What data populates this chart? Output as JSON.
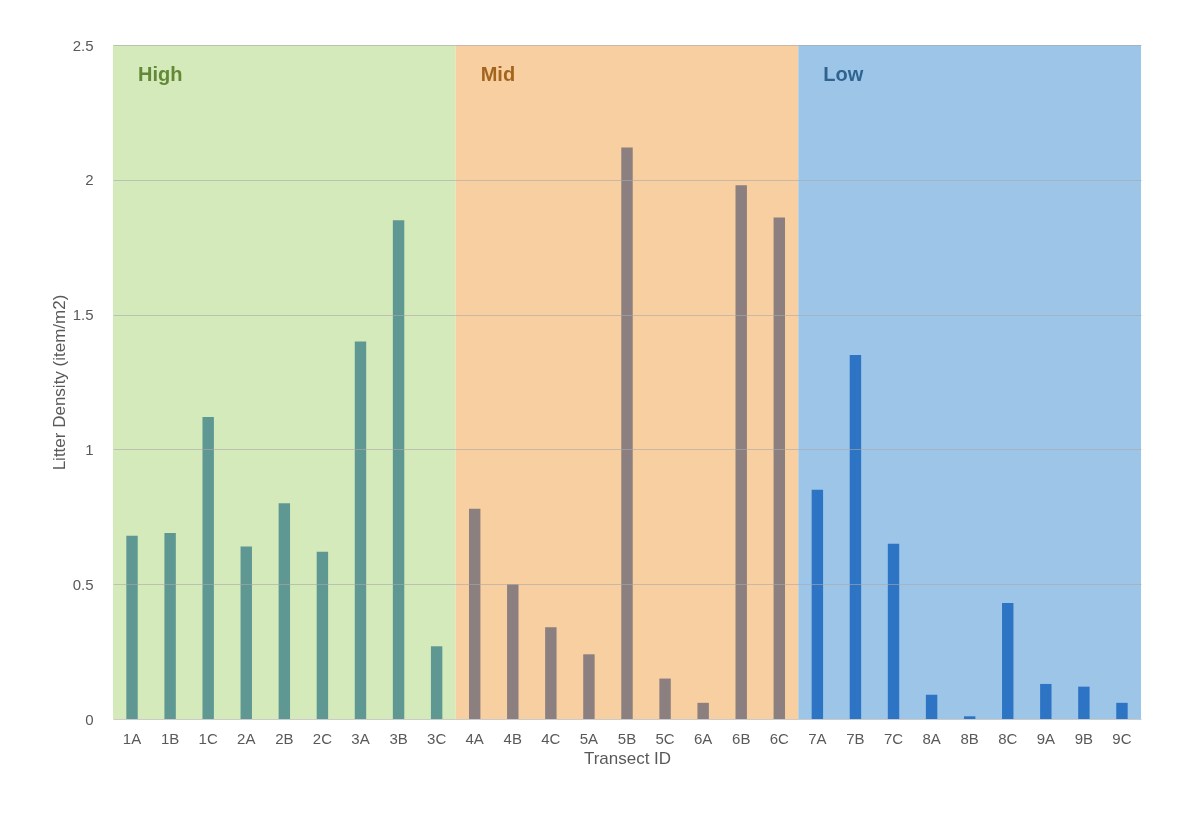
{
  "chart_data": {
    "type": "bar",
    "xlabel": "Transect ID",
    "ylabel": "Litter Density (item/m2)",
    "categories": [
      "1A",
      "1B",
      "1C",
      "2A",
      "2B",
      "2C",
      "3A",
      "3B",
      "3C",
      "4A",
      "4B",
      "4C",
      "5A",
      "5B",
      "5C",
      "6A",
      "6B",
      "6C",
      "7A",
      "7B",
      "7C",
      "8A",
      "8B",
      "8C",
      "9A",
      "9B",
      "9C"
    ],
    "values": [
      0.68,
      0.69,
      1.12,
      0.64,
      0.8,
      0.62,
      1.4,
      1.85,
      0.27,
      0.78,
      0.5,
      0.34,
      0.24,
      2.12,
      0.15,
      0.06,
      1.98,
      1.86,
      0.85,
      1.35,
      0.65,
      0.09,
      0.01,
      0.43,
      0.13,
      0.12,
      0.06
    ],
    "colors": [
      "#5f9893",
      "#5f9893",
      "#5f9893",
      "#5f9893",
      "#5f9893",
      "#5f9893",
      "#5f9893",
      "#5f9893",
      "#5f9893",
      "#8b7f7f",
      "#8b7f7f",
      "#8b7f7f",
      "#8b7f7f",
      "#8b7f7f",
      "#8b7f7f",
      "#8b7f7f",
      "#8b7f7f",
      "#8b7f7f",
      "#2e74c5",
      "#2e74c5",
      "#2e74c5",
      "#2e74c5",
      "#2e74c5",
      "#2e74c5",
      "#2e74c5",
      "#2e74c5",
      "#2e74c5"
    ],
    "ylim": [
      0,
      2.5
    ],
    "yticks": [
      0,
      0.5,
      1,
      1.5,
      2,
      2.5
    ],
    "grid": "y",
    "bands": [
      {
        "axis": "x",
        "from": "1A",
        "to": "3C",
        "label": "High",
        "color": "#d4eabb"
      },
      {
        "axis": "x",
        "from": "4A",
        "to": "6C",
        "label": "Mid",
        "color": "#f8cfa0"
      },
      {
        "axis": "x",
        "from": "7A",
        "to": "9C",
        "label": "Low",
        "color": "#9dc5e8"
      }
    ]
  }
}
